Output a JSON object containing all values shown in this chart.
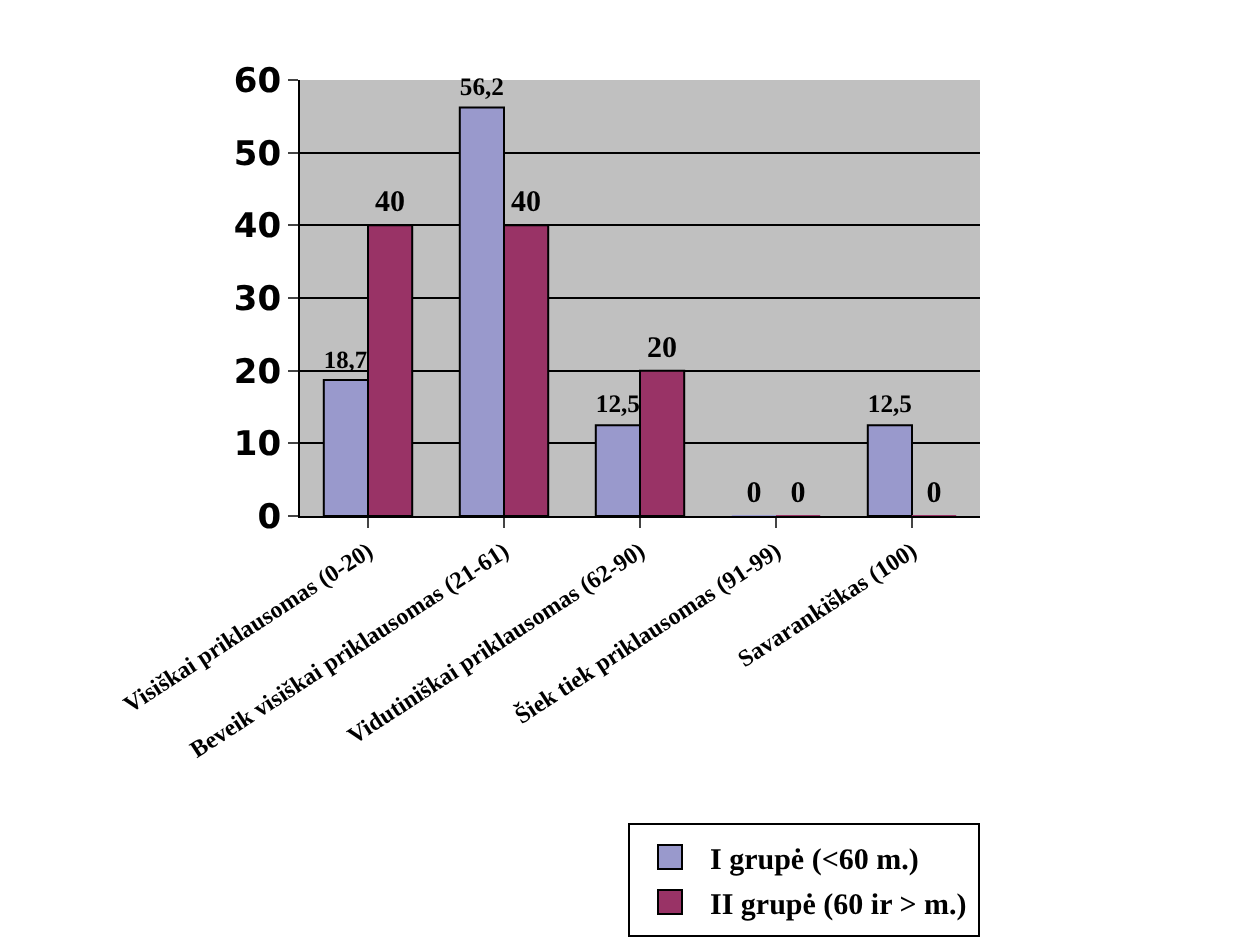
{
  "chart_data": {
    "type": "bar",
    "categories": [
      "Visiškai priklausomas (0-20)",
      "Beveik visiškai priklausomas (21-61)",
      "Vidutiniškai priklausomas (62-90)",
      "Šiek tiek priklausomas (91-99)",
      "Savarankiškas (100)"
    ],
    "series": [
      {
        "name": "I grupė (<60 m.)",
        "color": "#9999cc",
        "values": [
          18.7,
          56.2,
          12.5,
          0,
          12.5
        ],
        "value_labels": [
          "18,7",
          "56,2",
          "12,5",
          "0",
          "12,5"
        ]
      },
      {
        "name": "II grupė (60 ir > m.)",
        "color": "#993366",
        "values": [
          40,
          40,
          20,
          0,
          0
        ],
        "value_labels": [
          "40",
          "40",
          "20",
          "0",
          "0"
        ]
      }
    ],
    "ylim": [
      0,
      60
    ],
    "yticks": [
      0,
      10,
      20,
      30,
      40,
      50,
      60
    ],
    "grid": "y",
    "legend": "bottom right"
  }
}
